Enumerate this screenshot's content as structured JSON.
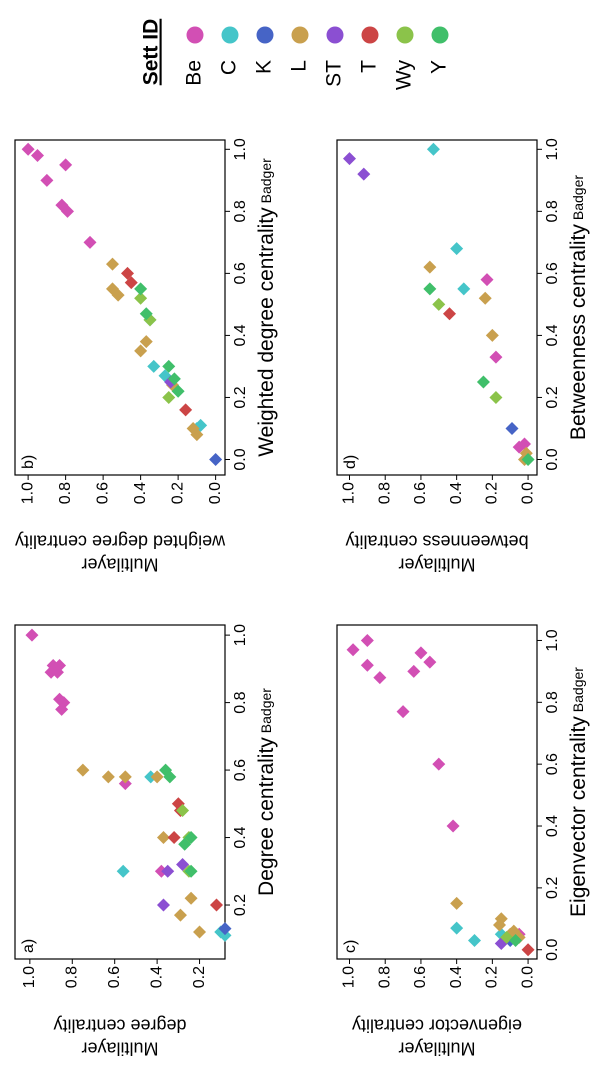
{
  "chart_data": [
    {
      "type": "scatter",
      "label": "a)",
      "xlabel": "Degree centrality",
      "xlabel_sub": "Badger",
      "ylabel": [
        "Multilayer",
        "degree centrality"
      ],
      "xlim": [
        0.04,
        1.03
      ],
      "ylim": [
        0.08,
        1.07
      ],
      "xticks": [
        0.2,
        0.4,
        0.6,
        0.8,
        {
          "value": 1.0,
          "label": "1.0"
        }
      ],
      "yticks": [
        0.2,
        0.4,
        0.6,
        0.8,
        {
          "value": 1.0,
          "label": "1.0"
        }
      ],
      "series": [
        {
          "name": "Be",
          "color": "#d24fb4",
          "x": [
            1.0,
            0.91,
            0.89,
            0.91,
            0.89,
            0.8,
            0.78,
            0.81,
            0.56,
            0.3
          ],
          "y": [
            0.99,
            0.89,
            0.9,
            0.86,
            0.87,
            0.84,
            0.85,
            0.86,
            0.55,
            0.38
          ]
        },
        {
          "name": "C",
          "color": "#45c5c9",
          "x": [
            0.3,
            0.58,
            0.12,
            0.11
          ],
          "y": [
            0.56,
            0.43,
            0.1,
            0.08
          ]
        },
        {
          "name": "K",
          "color": "#4664c6",
          "x": [
            0.13
          ],
          "y": [
            0.08
          ]
        },
        {
          "name": "L",
          "color": "#c9a04e",
          "x": [
            0.6,
            0.58,
            0.58,
            0.4,
            0.22,
            0.17,
            0.12,
            0.58
          ],
          "y": [
            0.75,
            0.63,
            0.55,
            0.37,
            0.24,
            0.29,
            0.2,
            0.4
          ]
        },
        {
          "name": "ST",
          "color": "#8b4fd2",
          "x": [
            0.2,
            0.3,
            0.32
          ],
          "y": [
            0.37,
            0.35,
            0.28
          ]
        },
        {
          "name": "T",
          "color": "#cc4545",
          "x": [
            0.5,
            0.48,
            0.4,
            0.2
          ],
          "y": [
            0.3,
            0.29,
            0.32,
            0.12
          ]
        },
        {
          "name": "Wy",
          "color": "#8bc34a",
          "x": [
            0.48,
            0.4,
            0.3
          ],
          "y": [
            0.28,
            0.25,
            0.25
          ]
        },
        {
          "name": "Y",
          "color": "#40bf6a",
          "x": [
            0.6,
            0.58,
            0.4,
            0.3,
            0.38
          ],
          "y": [
            0.36,
            0.34,
            0.24,
            0.24,
            0.27
          ]
        }
      ]
    },
    {
      "type": "scatter",
      "label": "b)",
      "xlabel": "Weighted degree centrality",
      "xlabel_sub": "Badger",
      "ylabel": [
        "Multilayer",
        "weighted degree centrality"
      ],
      "xlim": [
        -0.05,
        1.03
      ],
      "ylim": [
        -0.05,
        1.07
      ],
      "xticks": [
        {
          "value": 0.0,
          "label": "0.0"
        },
        0.2,
        0.4,
        0.6,
        0.8,
        {
          "value": 1.0,
          "label": "1.0"
        }
      ],
      "yticks": [
        {
          "value": 0.0,
          "label": "0.0"
        },
        0.2,
        0.4,
        0.6,
        0.8,
        {
          "value": 1.0,
          "label": "1.0"
        }
      ],
      "series": [
        {
          "name": "Be",
          "color": "#d24fb4",
          "x": [
            1.0,
            0.98,
            0.9,
            0.95,
            0.82,
            0.8,
            0.7
          ],
          "y": [
            1.0,
            0.95,
            0.9,
            0.8,
            0.82,
            0.79,
            0.67
          ]
        },
        {
          "name": "C",
          "color": "#45c5c9",
          "x": [
            0.45,
            0.3,
            0.27,
            0.1,
            0.11
          ],
          "y": [
            0.35,
            0.33,
            0.27,
            0.1,
            0.08
          ]
        },
        {
          "name": "K",
          "color": "#4664c6",
          "x": [
            0.0
          ],
          "y": [
            0.0
          ]
        },
        {
          "name": "L",
          "color": "#c9a04e",
          "x": [
            0.63,
            0.55,
            0.53,
            0.35,
            0.38,
            0.24,
            0.08,
            0.1
          ],
          "y": [
            0.55,
            0.55,
            0.52,
            0.4,
            0.37,
            0.23,
            0.1,
            0.12
          ]
        },
        {
          "name": "ST",
          "color": "#8b4fd2",
          "x": [
            0.25
          ],
          "y": [
            0.24
          ]
        },
        {
          "name": "T",
          "color": "#cc4545",
          "x": [
            0.6,
            0.57,
            0.16
          ],
          "y": [
            0.47,
            0.45,
            0.16
          ]
        },
        {
          "name": "Wy",
          "color": "#8bc34a",
          "x": [
            0.52,
            0.45,
            0.2
          ],
          "y": [
            0.4,
            0.35,
            0.25
          ]
        },
        {
          "name": "Y",
          "color": "#40bf6a",
          "x": [
            0.55,
            0.47,
            0.3,
            0.22,
            0.26
          ],
          "y": [
            0.4,
            0.37,
            0.25,
            0.2,
            0.22
          ]
        }
      ]
    },
    {
      "type": "scatter",
      "label": "c)",
      "xlabel": "Eigenvector centrality",
      "xlabel_sub": "Badger",
      "ylabel": [
        "Multilayer",
        "eigenvector centrality"
      ],
      "xlim": [
        -0.03,
        1.05
      ],
      "ylim": [
        -0.05,
        1.07
      ],
      "xticks": [
        {
          "value": 0.0,
          "label": "0.0"
        },
        0.2,
        0.4,
        0.6,
        0.8,
        {
          "value": 1.0,
          "label": "1.0"
        }
      ],
      "yticks": [
        {
          "value": 0.0,
          "label": "0.0"
        },
        0.2,
        0.4,
        0.6,
        0.8,
        {
          "value": 1.0,
          "label": "1.0"
        }
      ],
      "series": [
        {
          "name": "Be",
          "color": "#d24fb4",
          "x": [
            0.97,
            1.0,
            0.92,
            0.88,
            0.96,
            0.93,
            0.9,
            0.77,
            0.6,
            0.4,
            0.05
          ],
          "y": [
            0.98,
            0.9,
            0.9,
            0.83,
            0.6,
            0.55,
            0.64,
            0.7,
            0.5,
            0.42,
            0.05
          ]
        },
        {
          "name": "C",
          "color": "#45c5c9",
          "x": [
            0.07,
            0.03,
            0.05
          ],
          "y": [
            0.4,
            0.3,
            0.15
          ]
        },
        {
          "name": "K",
          "color": "#4664c6",
          "x": [
            0.03
          ],
          "y": [
            0.1
          ]
        },
        {
          "name": "L",
          "color": "#c9a04e",
          "x": [
            0.15,
            0.1,
            0.08,
            0.05,
            0.04,
            0.06
          ],
          "y": [
            0.4,
            0.15,
            0.16,
            0.1,
            0.05,
            0.08
          ]
        },
        {
          "name": "ST",
          "color": "#8b4fd2",
          "x": [
            0.02
          ],
          "y": [
            0.15
          ]
        },
        {
          "name": "T",
          "color": "#cc4545",
          "x": [
            0.0
          ],
          "y": [
            0.0
          ]
        },
        {
          "name": "Wy",
          "color": "#8bc34a",
          "x": [
            0.04
          ],
          "y": [
            0.12
          ]
        },
        {
          "name": "Y",
          "color": "#40bf6a",
          "x": [
            0.03
          ],
          "y": [
            0.07
          ]
        }
      ]
    },
    {
      "type": "scatter",
      "label": "d)",
      "xlabel": "Betweenness centrality",
      "xlabel_sub": "Badger",
      "ylabel": [
        "Multilayer",
        "betweenness  centrality"
      ],
      "xlim": [
        -0.05,
        1.03
      ],
      "ylim": [
        -0.05,
        1.07
      ],
      "xticks": [
        {
          "value": 0.0,
          "label": "0.0"
        },
        0.2,
        0.4,
        0.6,
        0.8,
        {
          "value": 1.0,
          "label": "1.0"
        }
      ],
      "yticks": [
        {
          "value": 0.0,
          "label": "0.0"
        },
        0.2,
        0.4,
        0.6,
        0.8,
        {
          "value": 1.0,
          "label": "1.0"
        }
      ],
      "series": [
        {
          "name": "Be",
          "color": "#d24fb4",
          "x": [
            0.58,
            0.33,
            0.05,
            0.04
          ],
          "y": [
            0.23,
            0.18,
            0.02,
            0.05
          ]
        },
        {
          "name": "C",
          "color": "#45c5c9",
          "x": [
            1.0,
            0.68,
            0.55
          ],
          "y": [
            0.53,
            0.4,
            0.36
          ]
        },
        {
          "name": "K",
          "color": "#4664c6",
          "x": [
            0.1
          ],
          "y": [
            0.09
          ]
        },
        {
          "name": "L",
          "color": "#c9a04e",
          "x": [
            0.62,
            0.52,
            0.4,
            0.02,
            0.0
          ],
          "y": [
            0.55,
            0.24,
            0.2,
            0.01,
            0.02
          ]
        },
        {
          "name": "ST",
          "color": "#8b4fd2",
          "x": [
            0.97,
            0.92
          ],
          "y": [
            1.0,
            0.92
          ]
        },
        {
          "name": "T",
          "color": "#cc4545",
          "x": [
            0.47
          ],
          "y": [
            0.44
          ]
        },
        {
          "name": "Wy",
          "color": "#8bc34a",
          "x": [
            0.5,
            0.2
          ],
          "y": [
            0.5,
            0.18
          ]
        },
        {
          "name": "Y",
          "color": "#40bf6a",
          "x": [
            0.55,
            0.25,
            0.0
          ],
          "y": [
            0.55,
            0.25,
            0.0
          ]
        }
      ]
    }
  ],
  "legend_title": "Sett ID"
}
